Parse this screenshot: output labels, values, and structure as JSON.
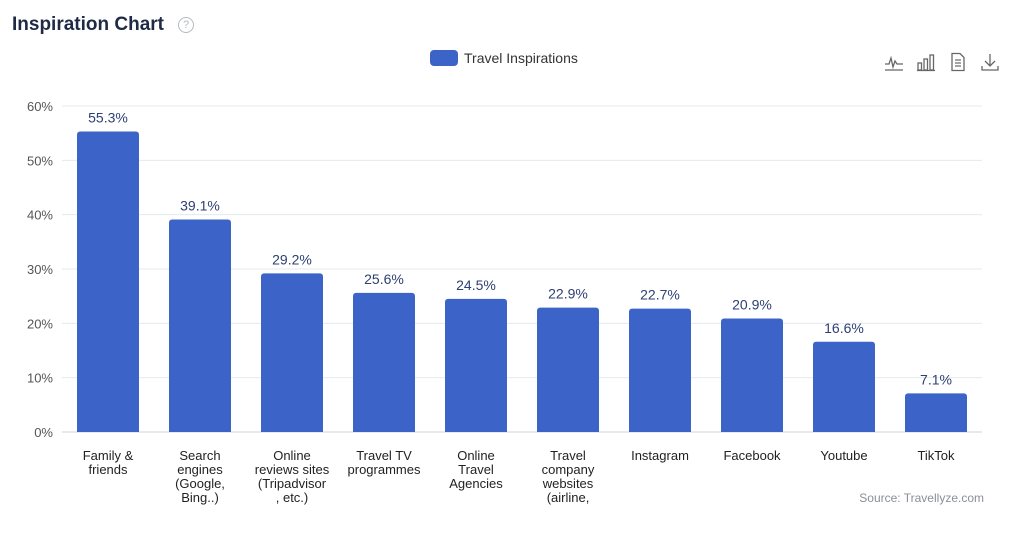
{
  "header": {
    "title": "Inspiration Chart",
    "help_icon": "question-circle-icon"
  },
  "toolbar": {
    "icons": [
      "line-chart-icon",
      "bar-chart-icon",
      "data-view-icon",
      "download-icon"
    ]
  },
  "source": "Source: Travellyze.com",
  "colors": {
    "bar": "#3c64c8",
    "grid": "#e6e8f0",
    "axis_text": "#555555",
    "label_text": "#2d3f73"
  },
  "chart_data": {
    "type": "bar",
    "legend": {
      "label": "Travel Inspirations",
      "position": "top-center"
    },
    "categories": [
      [
        "Family &",
        "friends"
      ],
      [
        "Search",
        "engines",
        "(Google,",
        "Bing..)"
      ],
      [
        "Online",
        "reviews sites",
        "(Tripadvisor",
        ", etc.)"
      ],
      [
        "Travel TV",
        "programmes"
      ],
      [
        "Online",
        "Travel",
        "Agencies"
      ],
      [
        "Travel",
        "company",
        "websites",
        "(airline,"
      ],
      [
        "Instagram"
      ],
      [
        "Facebook"
      ],
      [
        "Youtube"
      ],
      [
        "TikTok"
      ]
    ],
    "series": [
      {
        "name": "Travel Inspirations",
        "values": [
          55.3,
          39.1,
          29.2,
          25.6,
          24.5,
          22.9,
          22.7,
          20.9,
          16.6,
          7.1
        ]
      }
    ],
    "data_labels": [
      "55.3%",
      "39.1%",
      "29.2%",
      "25.6%",
      "24.5%",
      "22.9%",
      "22.7%",
      "20.9%",
      "16.6%",
      "7.1%"
    ],
    "y_ticks": [
      "0%",
      "10%",
      "20%",
      "30%",
      "40%",
      "50%",
      "60%"
    ],
    "ylim": [
      0,
      60
    ],
    "grid": true
  }
}
